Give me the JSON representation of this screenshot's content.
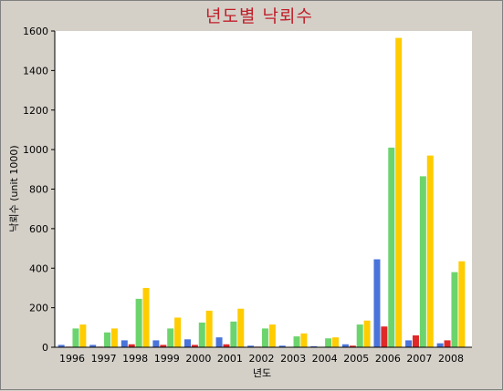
{
  "chart_data": {
    "type": "bar",
    "title": "년도별 낙뢰수",
    "xlabel": "년도",
    "ylabel": "낙뢰수  (unit 1000)",
    "ylim": [
      0,
      1600
    ],
    "yticks": [
      0,
      200,
      400,
      600,
      800,
      1000,
      1200,
      1400,
      1600
    ],
    "grid": false,
    "legend": "none",
    "categories": [
      "1996",
      "1997",
      "1998",
      "1999",
      "2000",
      "2001",
      "2002",
      "2003",
      "2004",
      "2005",
      "2006",
      "2007",
      "2008"
    ],
    "series": [
      {
        "color": "#4a74d9",
        "values": [
          12,
          12,
          35,
          35,
          40,
          50,
          8,
          8,
          5,
          15,
          445,
          35,
          20
        ]
      },
      {
        "color": "#e02828",
        "values": [
          3,
          3,
          15,
          12,
          12,
          15,
          3,
          2,
          2,
          8,
          105,
          60,
          35
        ]
      },
      {
        "color": "#6cd46c",
        "values": [
          95,
          75,
          245,
          95,
          125,
          130,
          95,
          55,
          45,
          115,
          1010,
          865,
          380
        ]
      },
      {
        "color": "#ffcc00",
        "values": [
          115,
          95,
          300,
          150,
          185,
          195,
          115,
          70,
          50,
          135,
          1565,
          970,
          435
        ]
      }
    ]
  }
}
